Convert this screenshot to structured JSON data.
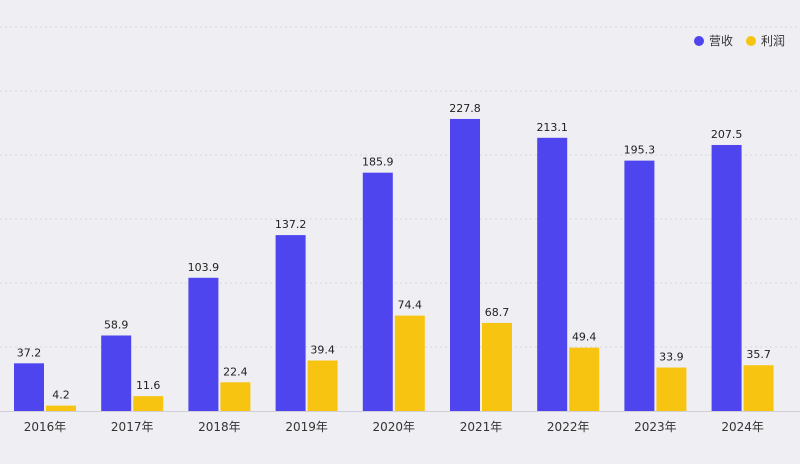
{
  "chart_data": {
    "type": "bar",
    "categories": [
      "2016年",
      "2017年",
      "2018年",
      "2019年",
      "2020年",
      "2021年",
      "2022年",
      "2023年",
      "2024年"
    ],
    "series": [
      {
        "name": "营收",
        "color": "#4f45ee",
        "values": [
          37.2,
          58.9,
          103.9,
          137.2,
          185.9,
          227.8,
          213.1,
          195.3,
          207.5
        ]
      },
      {
        "name": "利润",
        "color": "#f7c511",
        "values": [
          4.2,
          11.6,
          22.4,
          39.4,
          74.4,
          68.7,
          49.4,
          33.9,
          35.7
        ]
      }
    ],
    "value_labels": {
      "营收": [
        "37.2",
        "58.9",
        "103.9",
        "137.2",
        "185.9",
        "227.8",
        "213.1",
        "195.3",
        "207.5"
      ],
      "利润": [
        "4.2",
        "11.6",
        "22.4",
        "39.4",
        "74.4",
        "68.7",
        "49.4",
        "33.9",
        "35.7"
      ]
    },
    "ylim": [
      0,
      250
    ],
    "grid": true,
    "legend": "top-right",
    "title": "",
    "xlabel": "",
    "ylabel": ""
  }
}
